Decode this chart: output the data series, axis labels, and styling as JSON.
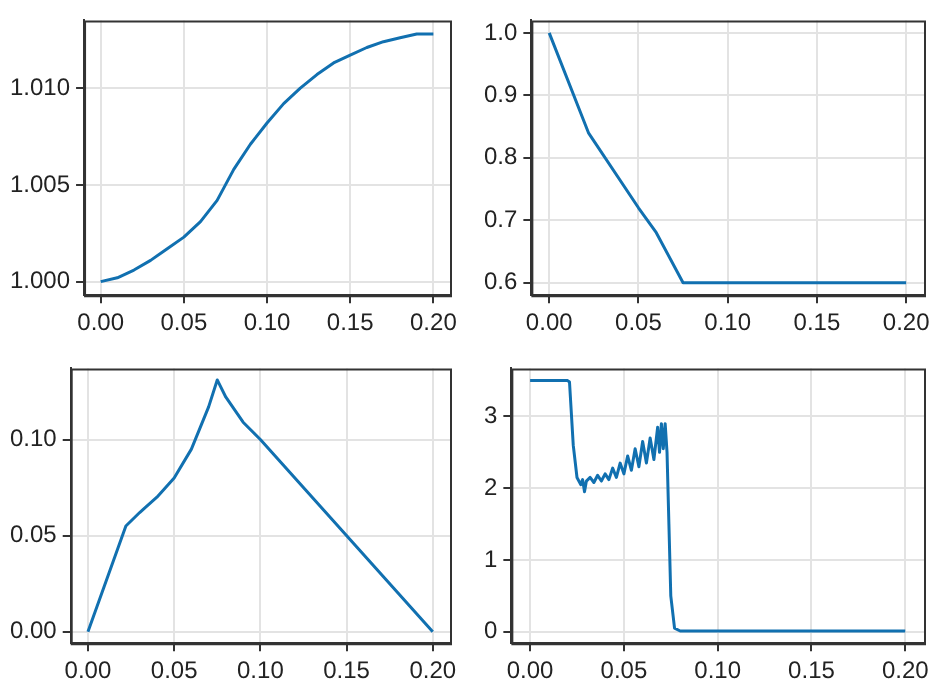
{
  "chart_data": [
    {
      "type": "line",
      "color": "#1170b0",
      "grid": true,
      "xlim": [
        -0.01,
        0.21
      ],
      "xticks": [
        {
          "value": 0,
          "label": "0.00"
        },
        {
          "value": 0.05,
          "label": "0.05"
        },
        {
          "value": 0.1,
          "label": "0.10"
        },
        {
          "value": 0.15,
          "label": "0.15"
        },
        {
          "value": 0.2,
          "label": "0.20"
        }
      ],
      "ylim": [
        0.9993,
        1.0135
      ],
      "yticks": [
        {
          "value": 1,
          "label": "1.000"
        },
        {
          "value": 1.005,
          "label": "1.005"
        },
        {
          "value": 1.01,
          "label": "1.010"
        }
      ],
      "x": [
        0,
        0.01,
        0.02,
        0.03,
        0.04,
        0.05,
        0.06,
        0.07,
        0.075,
        0.08,
        0.09,
        0.1,
        0.11,
        0.12,
        0.13,
        0.14,
        0.15,
        0.16,
        0.17,
        0.18,
        0.19,
        0.2
      ],
      "values": [
        1.0,
        1.0002,
        1.0006,
        1.0011,
        1.0017,
        1.0023,
        1.0031,
        1.0042,
        1.005,
        1.0058,
        1.0071,
        1.0082,
        1.0092,
        1.01,
        1.0107,
        1.0113,
        1.0117,
        1.0121,
        1.0124,
        1.0126,
        1.0128,
        1.0128
      ]
    },
    {
      "type": "line",
      "color": "#1170b0",
      "grid": true,
      "xlim": [
        -0.01,
        0.21
      ],
      "xticks": [
        {
          "value": 0,
          "label": "0.00"
        },
        {
          "value": 0.05,
          "label": "0.05"
        },
        {
          "value": 0.1,
          "label": "0.10"
        },
        {
          "value": 0.15,
          "label": "0.15"
        },
        {
          "value": 0.2,
          "label": "0.20"
        }
      ],
      "ylim": [
        0.58,
        1.02
      ],
      "yticks": [
        {
          "value": 0.6,
          "label": "0.6"
        },
        {
          "value": 0.7,
          "label": "0.7"
        },
        {
          "value": 0.8,
          "label": "0.8"
        },
        {
          "value": 0.9,
          "label": "0.9"
        },
        {
          "value": 1,
          "label": "1.0"
        }
      ],
      "x": [
        0,
        0.022,
        0.05,
        0.06,
        0.075,
        0.2
      ],
      "values": [
        1.0,
        0.84,
        0.72,
        0.68,
        0.6,
        0.6
      ]
    },
    {
      "type": "line",
      "color": "#1170b0",
      "grid": true,
      "xlim": [
        -0.01,
        0.21
      ],
      "xticks": [
        {
          "value": 0,
          "label": "0.00"
        },
        {
          "value": 0.05,
          "label": "0.05"
        },
        {
          "value": 0.1,
          "label": "0.10"
        },
        {
          "value": 0.15,
          "label": "0.15"
        },
        {
          "value": 0.2,
          "label": "0.20"
        }
      ],
      "ylim": [
        -0.006,
        0.137
      ],
      "yticks": [
        {
          "value": 0,
          "label": "0.00"
        },
        {
          "value": 0.05,
          "label": "0.05"
        },
        {
          "value": 0.1,
          "label": "0.10"
        }
      ],
      "x": [
        0,
        0.022,
        0.03,
        0.04,
        0.05,
        0.06,
        0.07,
        0.075,
        0.08,
        0.09,
        0.1,
        0.2
      ],
      "values": [
        0,
        0.055,
        0.062,
        0.07,
        0.08,
        0.095,
        0.117,
        0.131,
        0.122,
        0.109,
        0.1,
        0
      ]
    },
    {
      "type": "line",
      "color": "#1170b0",
      "grid": true,
      "xlim": [
        -0.01,
        0.21
      ],
      "xticks": [
        {
          "value": 0,
          "label": "0.00"
        },
        {
          "value": 0.05,
          "label": "0.05"
        },
        {
          "value": 0.1,
          "label": "0.10"
        },
        {
          "value": 0.15,
          "label": "0.15"
        },
        {
          "value": 0.2,
          "label": "0.20"
        }
      ],
      "ylim": [
        -0.16,
        3.67
      ],
      "yticks": [
        0,
        1,
        2,
        3
      ],
      "x": [
        0,
        0.02,
        0.021,
        0.023,
        0.025,
        0.027,
        0.028,
        0.029,
        0.03,
        0.032,
        0.034,
        0.036,
        0.038,
        0.04,
        0.042,
        0.044,
        0.046,
        0.048,
        0.05,
        0.052,
        0.054,
        0.056,
        0.058,
        0.06,
        0.062,
        0.064,
        0.066,
        0.068,
        0.069,
        0.07,
        0.071,
        0.072,
        0.073,
        0.074,
        0.075,
        0.077,
        0.08,
        0.2
      ],
      "values": [
        3.5,
        3.5,
        3.48,
        2.6,
        2.15,
        2.05,
        2.12,
        1.95,
        2.1,
        2.15,
        2.08,
        2.18,
        2.1,
        2.2,
        2.12,
        2.28,
        2.15,
        2.35,
        2.2,
        2.45,
        2.25,
        2.55,
        2.3,
        2.65,
        2.35,
        2.7,
        2.4,
        2.85,
        2.5,
        2.9,
        2.55,
        2.9,
        2.5,
        1.5,
        0.5,
        0.05,
        0.01,
        0.01
      ]
    }
  ]
}
